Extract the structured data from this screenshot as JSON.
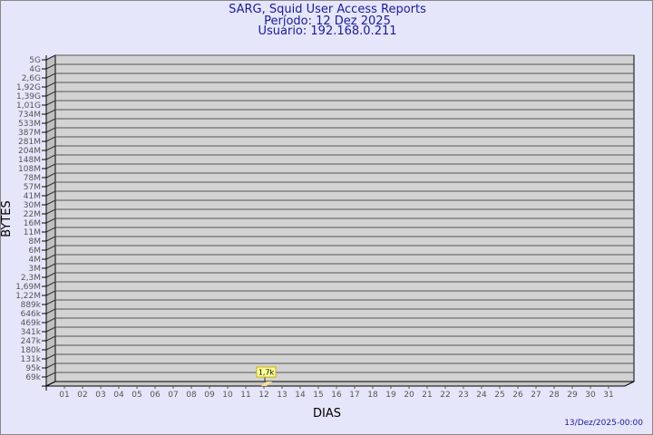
{
  "header": {
    "line1": "SARG, Squid User Access Reports",
    "line2": "Período: 12 Dez 2025",
    "line3": "Usuário: 192.168.0.211"
  },
  "footer": {
    "timestamp": "13/Dez/2025-00:00"
  },
  "chart_data": {
    "type": "bar",
    "title": "SARG, Squid User Access Reports",
    "xlabel": "DIAS",
    "ylabel": "BYTES",
    "y_scale": "log",
    "grid": true,
    "y_ticks": [
      "5G",
      "4G",
      "2,6G",
      "1,92G",
      "1,39G",
      "1,01G",
      "734M",
      "533M",
      "387M",
      "281M",
      "204M",
      "148M",
      "108M",
      "78M",
      "57M",
      "41M",
      "30M",
      "22M",
      "16M",
      "11M",
      "8M",
      "6M",
      "4M",
      "3M",
      "2,3M",
      "1,69M",
      "1,22M",
      "889k",
      "646k",
      "469k",
      "341k",
      "247k",
      "180k",
      "131k",
      "95k",
      "69k"
    ],
    "categories": [
      "01",
      "02",
      "03",
      "04",
      "05",
      "06",
      "07",
      "08",
      "09",
      "10",
      "11",
      "12",
      "13",
      "14",
      "15",
      "16",
      "17",
      "18",
      "19",
      "20",
      "21",
      "22",
      "23",
      "24",
      "25",
      "26",
      "27",
      "28",
      "29",
      "30",
      "31"
    ],
    "values": [
      {
        "x": "12",
        "y": "1,7k"
      }
    ],
    "colors": {
      "background": "#e6e6fa",
      "plot": "#d3d3d3",
      "bar": "#ffe08c",
      "label_bg": "#ffff99",
      "title": "#1a1a9c"
    }
  }
}
